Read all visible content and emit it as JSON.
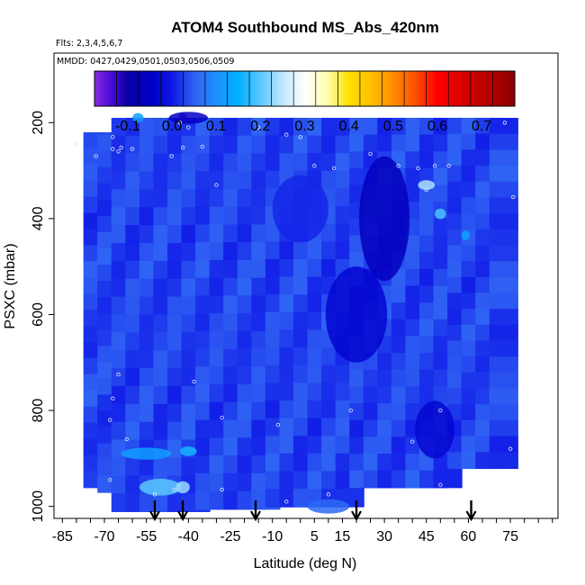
{
  "chart_data": {
    "type": "heatmap",
    "title": "ATOM4 Southbound MS_Abs_420nm",
    "flights_note": "Flts: 2,3,4,5,6,7",
    "dates_note": "MMDD: 0427,0429,0501,0503,0506,0509",
    "xlabel": "Latitude (deg N)",
    "ylabel": "PSXC (mbar)",
    "xlim": [
      -88,
      92
    ],
    "ylim": [
      1025,
      55
    ],
    "y_reversed": true,
    "x_ticks": [
      -85,
      -70,
      -55,
      -40,
      -25,
      -10,
      5,
      15,
      30,
      45,
      60,
      75
    ],
    "x_minor_step": 5,
    "y_ticks": [
      200,
      400,
      600,
      800,
      1000
    ],
    "colorbar": {
      "range": [
        -0.175,
        0.775
      ],
      "ticks": [
        -0.1,
        0.0,
        0.1,
        0.2,
        0.3,
        0.4,
        0.5,
        0.6,
        0.7
      ],
      "tick_labels": [
        "-0.1",
        "0.0",
        "0.1",
        "0.2",
        "0.3",
        "0.4",
        "0.5",
        "0.6",
        "0.7"
      ],
      "stops": [
        {
          "value": -0.175,
          "color": "#8a2be2"
        },
        {
          "value": -0.14,
          "color": "#4b0fd8"
        },
        {
          "value": -0.1,
          "color": "#0a00a8"
        },
        {
          "value": -0.04,
          "color": "#0000c8"
        },
        {
          "value": 0.0,
          "color": "#0f18e6"
        },
        {
          "value": 0.05,
          "color": "#2f5ff3"
        },
        {
          "value": 0.1,
          "color": "#1e90ff"
        },
        {
          "value": 0.15,
          "color": "#00b0ff"
        },
        {
          "value": 0.2,
          "color": "#5ac8ff"
        },
        {
          "value": 0.25,
          "color": "#bfe6ff"
        },
        {
          "value": 0.3,
          "color": "#ffffff"
        },
        {
          "value": 0.35,
          "color": "#ffffb0"
        },
        {
          "value": 0.4,
          "color": "#ffe000"
        },
        {
          "value": 0.45,
          "color": "#ffc000"
        },
        {
          "value": 0.5,
          "color": "#ff8c00"
        },
        {
          "value": 0.55,
          "color": "#ff5000"
        },
        {
          "value": 0.6,
          "color": "#ff0000"
        },
        {
          "value": 0.7,
          "color": "#c00000"
        },
        {
          "value": 0.775,
          "color": "#8b0000"
        }
      ]
    },
    "profiles": [
      {
        "lat": -70,
        "p_top": 220,
        "p_bot": 960
      },
      {
        "lat": -65,
        "p_top": 225,
        "p_bot": 970
      },
      {
        "lat": -60,
        "p_top": 190,
        "p_bot": 1010
      },
      {
        "lat": -55,
        "p_top": 190,
        "p_bot": 1010
      },
      {
        "lat": -50,
        "p_top": 190,
        "p_bot": 1010
      },
      {
        "lat": -45,
        "p_top": 190,
        "p_bot": 1010
      },
      {
        "lat": -40,
        "p_top": 190,
        "p_bot": 1010
      },
      {
        "lat": -35,
        "p_top": 190,
        "p_bot": 1010
      },
      {
        "lat": -30,
        "p_top": 190,
        "p_bot": 1005
      },
      {
        "lat": -25,
        "p_top": 190,
        "p_bot": 1005
      },
      {
        "lat": -20,
        "p_top": 190,
        "p_bot": 1005
      },
      {
        "lat": -15,
        "p_top": 190,
        "p_bot": 1005
      },
      {
        "lat": -10,
        "p_top": 190,
        "p_bot": 1005
      },
      {
        "lat": -5,
        "p_top": 190,
        "p_bot": 1000
      },
      {
        "lat": 0,
        "p_top": 190,
        "p_bot": 1000
      },
      {
        "lat": 5,
        "p_top": 190,
        "p_bot": 1000
      },
      {
        "lat": 10,
        "p_top": 190,
        "p_bot": 1000
      },
      {
        "lat": 15,
        "p_top": 190,
        "p_bot": 1000
      },
      {
        "lat": 20,
        "p_top": 190,
        "p_bot": 1000
      },
      {
        "lat": 25,
        "p_top": 190,
        "p_bot": 960
      },
      {
        "lat": 30,
        "p_top": 190,
        "p_bot": 960
      },
      {
        "lat": 35,
        "p_top": 190,
        "p_bot": 960
      },
      {
        "lat": 40,
        "p_top": 190,
        "p_bot": 960
      },
      {
        "lat": 45,
        "p_top": 190,
        "p_bot": 960
      },
      {
        "lat": 50,
        "p_top": 190,
        "p_bot": 960
      },
      {
        "lat": 55,
        "p_top": 190,
        "p_bot": 960
      },
      {
        "lat": 60,
        "p_top": 190,
        "p_bot": 920
      },
      {
        "lat": 65,
        "p_top": 190,
        "p_bot": 920
      },
      {
        "lat": 70,
        "p_top": 190,
        "p_bot": 920
      },
      {
        "lat": 75,
        "p_top": 190,
        "p_bot": 920
      }
    ],
    "features": [
      {
        "lat": -42,
        "p": 190,
        "dlat": 3,
        "dp": 22,
        "value": -0.16
      },
      {
        "lat": -40,
        "p": 190,
        "dlat": 14,
        "dp": 25,
        "value": -0.05
      },
      {
        "lat": -58,
        "p": 190,
        "dlat": 4,
        "dp": 20,
        "value": 0.12
      },
      {
        "lat": -50,
        "p": 960,
        "dlat": 15,
        "dp": 35,
        "value": 0.2
      },
      {
        "lat": -42,
        "p": 960,
        "dlat": 5,
        "dp": 25,
        "value": 0.23
      },
      {
        "lat": -55,
        "p": 890,
        "dlat": 18,
        "dp": 25,
        "value": 0.12
      },
      {
        "lat": -40,
        "p": 885,
        "dlat": 6,
        "dp": 20,
        "value": 0.16
      },
      {
        "lat": 45,
        "p": 330,
        "dlat": 6,
        "dp": 20,
        "value": 0.24
      },
      {
        "lat": 50,
        "p": 390,
        "dlat": 4,
        "dp": 22,
        "value": 0.19
      },
      {
        "lat": 59,
        "p": 435,
        "dlat": 3,
        "dp": 20,
        "value": 0.13
      },
      {
        "lat": 30,
        "p": 400,
        "dlat": 18,
        "dp": 260,
        "value": -0.06
      },
      {
        "lat": 20,
        "p": 600,
        "dlat": 22,
        "dp": 200,
        "value": -0.03
      },
      {
        "lat": 0,
        "p": 380,
        "dlat": 20,
        "dp": 140,
        "value": 0.01
      },
      {
        "lat": 48,
        "p": 840,
        "dlat": 14,
        "dp": 120,
        "value": -0.03
      },
      {
        "lat": 10,
        "p": 1000,
        "dlat": 15,
        "dp": 30,
        "value": 0.06
      }
    ],
    "base_value": 0.035,
    "sample_points": [
      {
        "lat": -80,
        "p": 245
      },
      {
        "lat": -73,
        "p": 270
      },
      {
        "lat": -67,
        "p": 230
      },
      {
        "lat": -64,
        "p": 252
      },
      {
        "lat": -65,
        "p": 260
      },
      {
        "lat": -67,
        "p": 255
      },
      {
        "lat": -60,
        "p": 255
      },
      {
        "lat": -43,
        "p": 200
      },
      {
        "lat": -40,
        "p": 210
      },
      {
        "lat": -42,
        "p": 252
      },
      {
        "lat": -46,
        "p": 270
      },
      {
        "lat": -35,
        "p": 250
      },
      {
        "lat": -30,
        "p": 330
      },
      {
        "lat": -15,
        "p": 210
      },
      {
        "lat": -5,
        "p": 225
      },
      {
        "lat": 0,
        "p": 230
      },
      {
        "lat": 5,
        "p": 290
      },
      {
        "lat": 12,
        "p": 295
      },
      {
        "lat": 25,
        "p": 265
      },
      {
        "lat": 35,
        "p": 290
      },
      {
        "lat": 42,
        "p": 295
      },
      {
        "lat": 48,
        "p": 290
      },
      {
        "lat": 53,
        "p": 290
      },
      {
        "lat": 45,
        "p": 340
      },
      {
        "lat": 73,
        "p": 200
      },
      {
        "lat": -38,
        "p": 740
      },
      {
        "lat": -65,
        "p": 725
      },
      {
        "lat": -67,
        "p": 775
      },
      {
        "lat": -68,
        "p": 820
      },
      {
        "lat": -62,
        "p": 860
      },
      {
        "lat": -28,
        "p": 815
      },
      {
        "lat": -8,
        "p": 830
      },
      {
        "lat": 18,
        "p": 800
      },
      {
        "lat": 40,
        "p": 865
      },
      {
        "lat": 50,
        "p": 800
      },
      {
        "lat": 75,
        "p": 880
      },
      {
        "lat": -68,
        "p": 945
      },
      {
        "lat": -52,
        "p": 975
      },
      {
        "lat": -45,
        "p": 965
      },
      {
        "lat": -28,
        "p": 965
      },
      {
        "lat": -5,
        "p": 990
      },
      {
        "lat": 10,
        "p": 975
      },
      {
        "lat": 50,
        "p": 955
      },
      {
        "lat": 76,
        "p": 355
      }
    ],
    "arrows_lat": [
      -52,
      -42,
      -16,
      20,
      61
    ]
  }
}
